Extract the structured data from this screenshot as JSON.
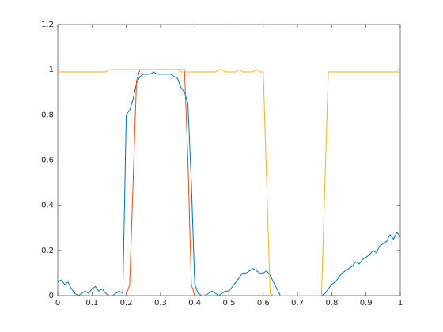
{
  "chart_data": {
    "type": "line",
    "x": [
      0,
      0.01,
      0.02,
      0.03,
      0.04,
      0.05,
      0.06,
      0.07,
      0.08,
      0.09,
      0.1,
      0.11,
      0.12,
      0.13,
      0.14,
      0.15,
      0.16,
      0.17,
      0.18,
      0.19,
      0.2,
      0.21,
      0.22,
      0.23,
      0.24,
      0.25,
      0.26,
      0.27,
      0.28,
      0.29,
      0.3,
      0.31,
      0.32,
      0.33,
      0.34,
      0.35,
      0.36,
      0.37,
      0.38,
      0.39,
      0.4,
      0.41,
      0.42,
      0.43,
      0.44,
      0.45,
      0.46,
      0.47,
      0.48,
      0.49,
      0.5,
      0.51,
      0.52,
      0.53,
      0.54,
      0.55,
      0.56,
      0.57,
      0.58,
      0.59,
      0.6,
      0.61,
      0.62,
      0.63,
      0.64,
      0.65,
      0.66,
      0.67,
      0.68,
      0.69,
      0.7,
      0.71,
      0.72,
      0.73,
      0.74,
      0.75,
      0.76,
      0.77,
      0.78,
      0.79,
      0.8,
      0.81,
      0.82,
      0.83,
      0.84,
      0.85,
      0.86,
      0.87,
      0.88,
      0.89,
      0.9,
      0.91,
      0.92,
      0.93,
      0.94,
      0.95,
      0.96,
      0.97,
      0.98,
      0.99,
      1
    ],
    "series": [
      {
        "color": "#0072bd",
        "values": [
          0.06,
          0.07,
          0.05,
          0.06,
          0.03,
          0.01,
          0,
          0.01,
          0.02,
          0.01,
          0.03,
          0.04,
          0.02,
          0.03,
          0.01,
          0,
          0,
          0.01,
          0.02,
          0.01,
          0.8,
          0.82,
          0.87,
          0.94,
          0.97,
          0.98,
          0.98,
          0.98,
          0.99,
          0.98,
          0.98,
          0.98,
          0.98,
          0.98,
          0.97,
          0.96,
          0.92,
          0.9,
          0.85,
          0.5,
          0.05,
          0.01,
          0,
          0,
          0.01,
          0.02,
          0.01,
          0,
          0.01,
          0.02,
          0.02,
          0.04,
          0.06,
          0.08,
          0.1,
          0.1,
          0.11,
          0.12,
          0.11,
          0.1,
          0.1,
          0.11,
          0.09,
          0.06,
          0.03,
          0,
          0,
          0,
          0,
          0,
          0,
          0,
          0,
          0,
          0,
          0,
          0,
          0,
          0.01,
          0.03,
          0.05,
          0.06,
          0.08,
          0.1,
          0.11,
          0.12,
          0.13,
          0.15,
          0.14,
          0.16,
          0.17,
          0.18,
          0.2,
          0.19,
          0.22,
          0.23,
          0.24,
          0.27,
          0.25,
          0.28,
          0.26
        ]
      },
      {
        "color": "#d95319",
        "values": [
          0,
          0,
          0,
          0,
          0,
          0,
          0,
          0,
          0,
          0,
          0,
          0,
          0,
          0,
          0,
          0,
          0,
          0,
          0,
          0,
          0,
          0.05,
          0.5,
          0.95,
          1,
          1,
          1,
          1,
          1,
          1,
          1,
          1,
          1,
          1,
          1,
          1,
          1,
          1,
          0.6,
          0.05,
          0,
          0,
          0,
          0,
          0,
          0,
          0,
          0,
          0,
          0,
          0,
          0,
          0,
          0,
          0,
          0,
          0,
          0,
          0,
          0,
          0,
          0,
          0,
          0,
          0,
          0,
          0,
          0,
          0,
          0,
          0,
          0,
          0,
          0,
          0,
          0,
          0,
          0,
          0,
          0,
          0,
          0,
          0,
          0,
          0,
          0,
          0,
          0,
          0,
          0,
          0,
          0,
          0,
          0,
          0,
          0,
          0,
          0,
          0,
          0,
          0
        ]
      },
      {
        "color": "#edb120",
        "values": [
          0.99,
          0.99,
          0.99,
          0.99,
          0.99,
          0.99,
          0.99,
          0.99,
          0.99,
          0.99,
          0.99,
          0.99,
          0.99,
          0.99,
          0.99,
          1,
          1,
          1,
          1,
          1,
          1,
          1,
          1,
          1,
          1,
          1,
          1,
          1,
          1,
          1,
          1,
          1,
          1,
          1,
          1,
          1,
          0.99,
          0.99,
          0.99,
          0.99,
          0.99,
          0.99,
          0.99,
          0.99,
          0.99,
          0.99,
          0.99,
          1,
          1,
          0.99,
          0.99,
          0.99,
          0.99,
          1,
          0.99,
          0.99,
          0.99,
          0.99,
          1,
          0.99,
          0.99,
          0.5,
          0.01,
          0,
          0,
          0,
          0,
          0,
          0,
          0,
          0,
          0,
          0,
          0,
          0,
          0,
          0,
          0,
          0.5,
          0.99,
          0.99,
          0.99,
          0.99,
          0.99,
          0.99,
          0.99,
          0.99,
          0.99,
          0.99,
          0.99,
          0.99,
          0.99,
          0.99,
          0.99,
          0.99,
          0.99,
          0.99,
          0.99,
          0.99,
          0.99,
          0.99
        ]
      }
    ],
    "xlim": [
      0,
      1
    ],
    "ylim": [
      0,
      1.2
    ],
    "xticks": [
      0,
      0.1,
      0.2,
      0.3,
      0.4,
      0.5,
      0.6,
      0.7,
      0.8,
      0.9,
      1
    ],
    "yticks": [
      0,
      0.2,
      0.4,
      0.6,
      0.8,
      1,
      1.2
    ]
  }
}
